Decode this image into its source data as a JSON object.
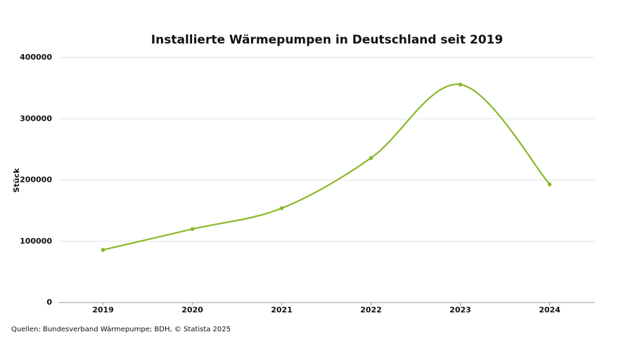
{
  "chart_data": {
    "type": "line",
    "title": "Installierte Wärmepumpen in Deutschland seit 2019",
    "y_label": "Stück",
    "source": "Quellen: Bundesverband Wärmepumpe; BDH, © Statista 2025",
    "categories": [
      "2019",
      "2020",
      "2021",
      "2022",
      "2023",
      "2024"
    ],
    "values": [
      86000,
      120000,
      154000,
      236000,
      356000,
      193000
    ],
    "color": "#8ab82a",
    "ylim": [
      0,
      400000
    ],
    "yticks": [
      0,
      100000,
      200000,
      300000,
      400000
    ],
    "grid": true
  }
}
